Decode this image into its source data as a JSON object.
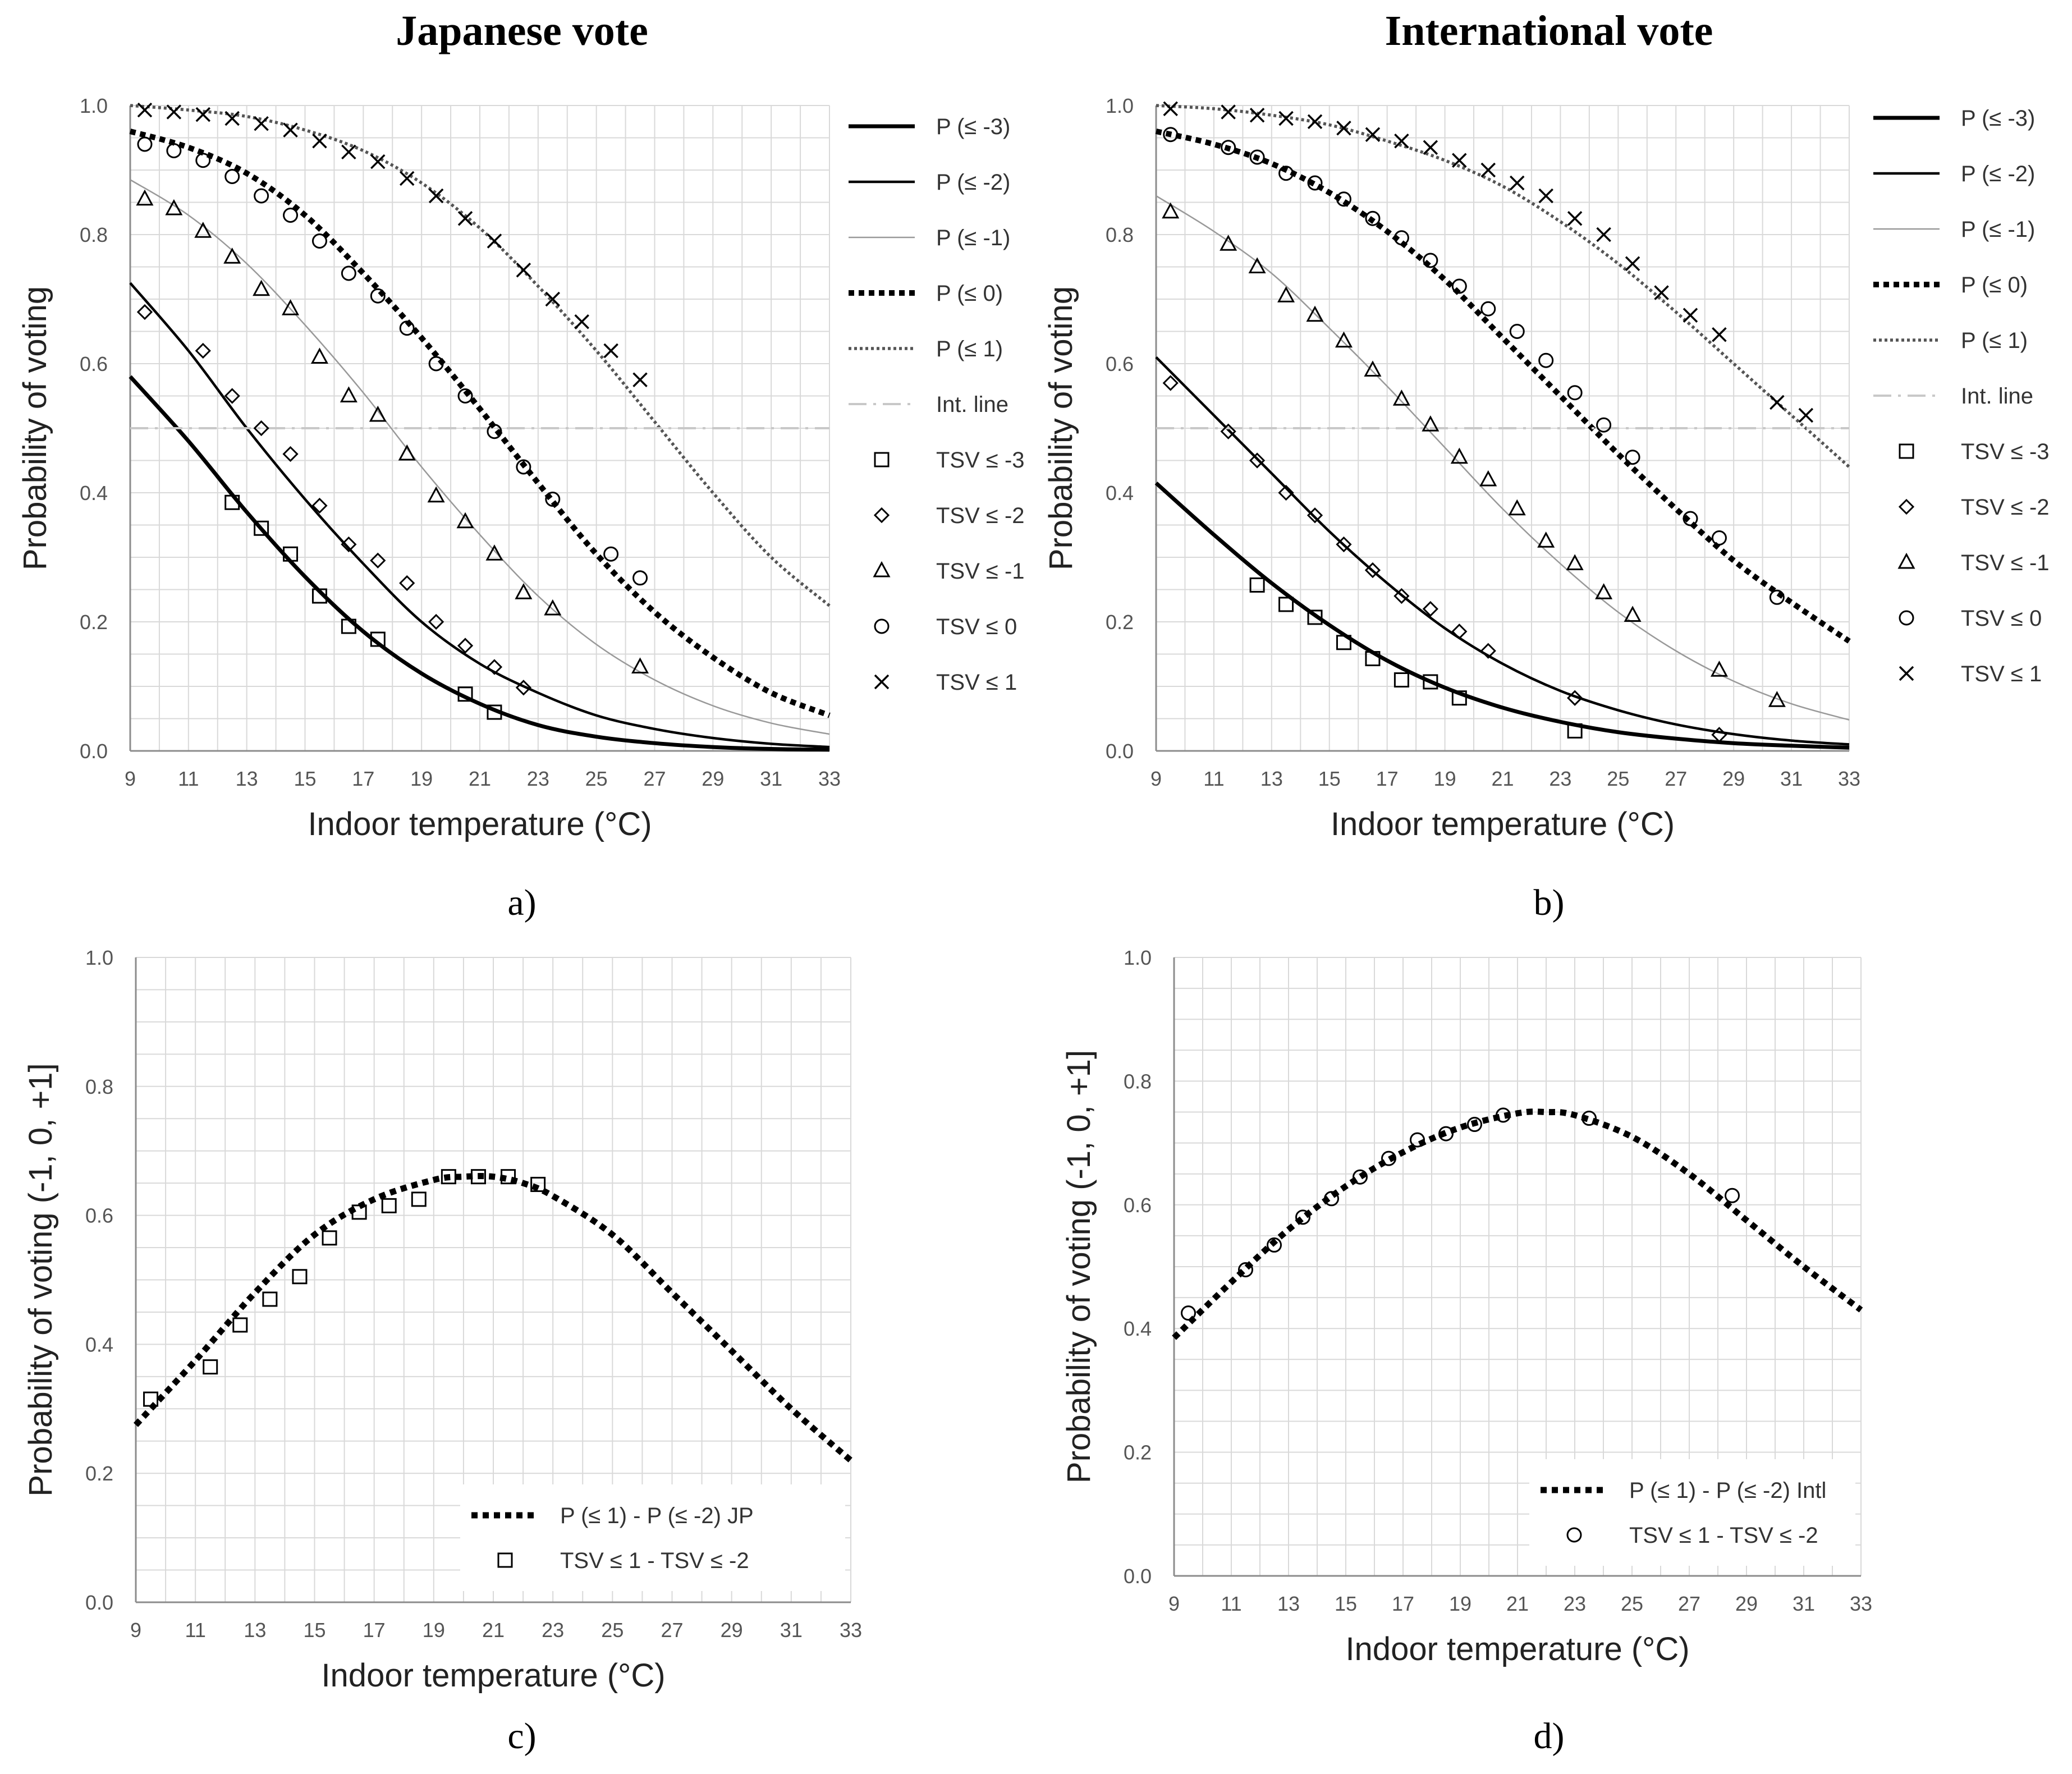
{
  "figure": {
    "titles": [
      "Japanese vote",
      "International vote"
    ],
    "sub_labels": [
      "a)",
      "b)",
      "c)",
      "d)"
    ],
    "series_styles": {
      "P (≤ -3)": {
        "color": "#000000"
      },
      "P (≤ -2)": {
        "color": "#000000"
      },
      "P (≤ -1)": {
        "color": "#999999"
      },
      "P (≤ 0)": {
        "color": "#000000",
        "dash": "dotted"
      },
      "P (≤ 1)": {
        "color": "#555555",
        "dash": "dotted"
      },
      "Int. line": {
        "color": "#c8c8c8",
        "dash": "dash-dot"
      }
    }
  },
  "chart_data": [
    {
      "id": "a",
      "type": "line",
      "title": "Japanese vote",
      "sub_label": "a)",
      "xlabel": "Indoor temperature (°C)",
      "ylabel": "Probability of voting",
      "xlim": [
        9,
        33
      ],
      "ylim": [
        0,
        1
      ],
      "xticks": [
        9,
        11,
        13,
        15,
        17,
        19,
        21,
        23,
        25,
        27,
        29,
        31,
        33
      ],
      "yticks": [
        "0.0",
        "0.2",
        "0.4",
        "0.6",
        "0.8",
        "1.0"
      ],
      "grid": true,
      "legend_position": "right",
      "series": [
        {
          "name": "P (≤ -3)",
          "kind": "line",
          "x": [
            9,
            11,
            13,
            15,
            17,
            19,
            21,
            23,
            25,
            27,
            29,
            31,
            33
          ],
          "values": [
            0.58,
            0.48,
            0.37,
            0.27,
            0.185,
            0.12,
            0.073,
            0.04,
            0.022,
            0.012,
            0.006,
            0.003,
            0.002
          ]
        },
        {
          "name": "P (≤ -2)",
          "kind": "line",
          "x": [
            9,
            11,
            13,
            15,
            17,
            19,
            21,
            23,
            25,
            27,
            29,
            31,
            33
          ],
          "values": [
            0.725,
            0.62,
            0.5,
            0.39,
            0.29,
            0.2,
            0.135,
            0.09,
            0.055,
            0.034,
            0.02,
            0.011,
            0.006
          ]
        },
        {
          "name": "P (≤ -1)",
          "kind": "line",
          "x": [
            9,
            11,
            13,
            15,
            17,
            19,
            21,
            23,
            25,
            27,
            29,
            31,
            33
          ],
          "values": [
            0.885,
            0.83,
            0.755,
            0.66,
            0.555,
            0.44,
            0.335,
            0.24,
            0.165,
            0.11,
            0.07,
            0.043,
            0.026
          ]
        },
        {
          "name": "P (≤ 0)",
          "kind": "line",
          "x": [
            9,
            11,
            13,
            15,
            17,
            19,
            21,
            23,
            25,
            27,
            29,
            31,
            33
          ],
          "values": [
            0.96,
            0.935,
            0.895,
            0.83,
            0.74,
            0.64,
            0.53,
            0.415,
            0.305,
            0.215,
            0.145,
            0.09,
            0.055
          ]
        },
        {
          "name": "P (≤ 1)",
          "kind": "line",
          "x": [
            9,
            11,
            13,
            15,
            17,
            19,
            21,
            23,
            25,
            27,
            29,
            31,
            33
          ],
          "values": [
            1.0,
            0.993,
            0.983,
            0.962,
            0.93,
            0.88,
            0.81,
            0.72,
            0.62,
            0.51,
            0.4,
            0.3,
            0.225
          ]
        },
        {
          "name": "Int. line",
          "kind": "line",
          "x": [
            9,
            33
          ],
          "values": [
            0.5,
            0.5
          ]
        },
        {
          "name": "TSV ≤ -3",
          "kind": "points",
          "marker": "square",
          "x": [
            12.5,
            13.5,
            14.5,
            15.5,
            16.5,
            17.5,
            20.5,
            21.5
          ],
          "values": [
            0.385,
            0.345,
            0.305,
            0.24,
            0.193,
            0.173,
            0.088,
            0.06
          ]
        },
        {
          "name": "TSV ≤ -2",
          "kind": "points",
          "marker": "diamond",
          "x": [
            9.5,
            11.5,
            12.5,
            13.5,
            14.5,
            15.5,
            16.5,
            17.5,
            18.5,
            19.5,
            20.5,
            21.5,
            22.5
          ],
          "values": [
            0.68,
            0.62,
            0.55,
            0.5,
            0.46,
            0.38,
            0.32,
            0.295,
            0.26,
            0.2,
            0.163,
            0.13,
            0.098
          ]
        },
        {
          "name": "TSV ≤ -1",
          "kind": "points",
          "marker": "triangle",
          "x": [
            9.5,
            10.5,
            11.5,
            12.5,
            13.5,
            14.5,
            15.5,
            16.5,
            17.5,
            18.5,
            19.5,
            20.5,
            21.5,
            22.5,
            23.5,
            26.5
          ],
          "values": [
            0.855,
            0.84,
            0.805,
            0.765,
            0.715,
            0.685,
            0.61,
            0.55,
            0.52,
            0.46,
            0.395,
            0.355,
            0.305,
            0.245,
            0.22,
            0.13
          ]
        },
        {
          "name": "TSV ≤ 0",
          "kind": "points",
          "marker": "circle",
          "x": [
            9.5,
            10.5,
            11.5,
            12.5,
            13.5,
            14.5,
            15.5,
            16.5,
            17.5,
            18.5,
            19.5,
            20.5,
            21.5,
            22.5,
            23.5,
            25.5,
            26.5
          ],
          "values": [
            0.94,
            0.93,
            0.915,
            0.89,
            0.86,
            0.83,
            0.79,
            0.74,
            0.705,
            0.655,
            0.6,
            0.55,
            0.495,
            0.44,
            0.39,
            0.305,
            0.268
          ]
        },
        {
          "name": "TSV ≤ 1",
          "kind": "points",
          "marker": "cross",
          "x": [
            9.5,
            10.5,
            11.5,
            12.5,
            13.5,
            14.5,
            15.5,
            16.5,
            17.5,
            18.5,
            19.5,
            20.5,
            21.5,
            22.5,
            23.5,
            24.5,
            25.5,
            26.5
          ],
          "values": [
            0.993,
            0.99,
            0.986,
            0.98,
            0.972,
            0.962,
            0.945,
            0.928,
            0.913,
            0.887,
            0.86,
            0.825,
            0.79,
            0.745,
            0.7,
            0.665,
            0.62,
            0.575
          ]
        }
      ]
    },
    {
      "id": "b",
      "type": "line",
      "title": "International vote",
      "sub_label": "b)",
      "xlabel": "Indoor temperature (°C)",
      "ylabel": "Probability of voting",
      "xlim": [
        9,
        33
      ],
      "ylim": [
        0,
        1
      ],
      "xticks": [
        9,
        11,
        13,
        15,
        17,
        19,
        21,
        23,
        25,
        27,
        29,
        31,
        33
      ],
      "yticks": [
        "0.0",
        "0.2",
        "0.4",
        "0.6",
        "0.8",
        "1.0"
      ],
      "grid": true,
      "legend_position": "right",
      "series": [
        {
          "name": "P (≤ -3)",
          "kind": "line",
          "x": [
            9,
            11,
            13,
            15,
            17,
            19,
            21,
            23,
            25,
            27,
            29,
            31,
            33
          ],
          "values": [
            0.415,
            0.335,
            0.26,
            0.195,
            0.14,
            0.098,
            0.067,
            0.045,
            0.029,
            0.019,
            0.012,
            0.008,
            0.005
          ]
        },
        {
          "name": "P (≤ -2)",
          "kind": "line",
          "x": [
            9,
            11,
            13,
            15,
            17,
            19,
            21,
            23,
            25,
            27,
            29,
            31,
            33
          ],
          "values": [
            0.61,
            0.52,
            0.43,
            0.34,
            0.26,
            0.19,
            0.135,
            0.093,
            0.063,
            0.041,
            0.026,
            0.016,
            0.01
          ]
        },
        {
          "name": "P (≤ -1)",
          "kind": "line",
          "x": [
            9,
            11,
            13,
            15,
            17,
            19,
            21,
            23,
            25,
            27,
            29,
            31,
            33
          ],
          "values": [
            0.86,
            0.805,
            0.74,
            0.655,
            0.565,
            0.47,
            0.375,
            0.29,
            0.215,
            0.155,
            0.108,
            0.073,
            0.048
          ]
        },
        {
          "name": "P (≤ 0)",
          "kind": "line",
          "x": [
            9,
            11,
            13,
            15,
            17,
            19,
            21,
            23,
            25,
            27,
            29,
            31,
            33
          ],
          "values": [
            0.96,
            0.94,
            0.91,
            0.865,
            0.805,
            0.73,
            0.64,
            0.55,
            0.46,
            0.375,
            0.295,
            0.23,
            0.17
          ]
        },
        {
          "name": "P (≤ 1)",
          "kind": "line",
          "x": [
            9,
            11,
            13,
            15,
            17,
            19,
            21,
            23,
            25,
            27,
            29,
            31,
            33
          ],
          "values": [
            1.0,
            0.995,
            0.985,
            0.97,
            0.945,
            0.915,
            0.875,
            0.82,
            0.755,
            0.68,
            0.6,
            0.52,
            0.44
          ]
        },
        {
          "name": "Int. line",
          "kind": "line",
          "x": [
            9,
            33
          ],
          "values": [
            0.5,
            0.5
          ]
        },
        {
          "name": "TSV ≤ -3",
          "kind": "points",
          "marker": "square",
          "x": [
            12.5,
            13.5,
            14.5,
            15.5,
            16.5,
            17.5,
            18.5,
            19.5,
            23.5
          ],
          "values": [
            0.257,
            0.227,
            0.207,
            0.168,
            0.143,
            0.11,
            0.107,
            0.082,
            0.031
          ]
        },
        {
          "name": "TSV ≤ -2",
          "kind": "points",
          "marker": "diamond",
          "x": [
            9.5,
            11.5,
            12.5,
            13.5,
            14.5,
            15.5,
            16.5,
            17.5,
            18.5,
            19.5,
            20.5,
            23.5,
            28.5
          ],
          "values": [
            0.57,
            0.495,
            0.45,
            0.4,
            0.365,
            0.32,
            0.28,
            0.24,
            0.22,
            0.185,
            0.155,
            0.082,
            0.025
          ]
        },
        {
          "name": "TSV ≤ -1",
          "kind": "points",
          "marker": "triangle",
          "x": [
            9.5,
            11.5,
            12.5,
            13.5,
            14.5,
            15.5,
            16.5,
            17.5,
            18.5,
            19.5,
            20.5,
            21.5,
            22.5,
            23.5,
            24.5,
            25.5,
            28.5,
            30.5
          ],
          "values": [
            0.835,
            0.785,
            0.75,
            0.705,
            0.675,
            0.635,
            0.59,
            0.545,
            0.505,
            0.455,
            0.42,
            0.375,
            0.325,
            0.29,
            0.245,
            0.21,
            0.125,
            0.078
          ]
        },
        {
          "name": "TSV ≤ 0",
          "kind": "points",
          "marker": "circle",
          "x": [
            9.5,
            11.5,
            12.5,
            13.5,
            14.5,
            15.5,
            16.5,
            17.5,
            18.5,
            19.5,
            20.5,
            21.5,
            22.5,
            23.5,
            24.5,
            25.5,
            27.5,
            28.5,
            30.5
          ],
          "values": [
            0.955,
            0.935,
            0.92,
            0.895,
            0.88,
            0.855,
            0.825,
            0.795,
            0.76,
            0.72,
            0.685,
            0.65,
            0.605,
            0.555,
            0.505,
            0.455,
            0.36,
            0.33,
            0.238
          ]
        },
        {
          "name": "TSV ≤ 1",
          "kind": "points",
          "marker": "cross",
          "x": [
            9.5,
            11.5,
            12.5,
            13.5,
            14.5,
            15.5,
            16.5,
            17.5,
            18.5,
            19.5,
            20.5,
            21.5,
            22.5,
            23.5,
            24.5,
            25.5,
            26.5,
            27.5,
            28.5,
            30.5,
            31.5
          ],
          "values": [
            0.995,
            0.99,
            0.985,
            0.98,
            0.975,
            0.965,
            0.955,
            0.945,
            0.935,
            0.915,
            0.9,
            0.88,
            0.86,
            0.825,
            0.8,
            0.755,
            0.71,
            0.675,
            0.645,
            0.54,
            0.52
          ]
        }
      ]
    },
    {
      "id": "c",
      "type": "line",
      "sub_label": "c)",
      "xlabel": "Indoor temperature (°C)",
      "ylabel": "Probability of voting  (-1, 0, +1]",
      "xlim": [
        9,
        33
      ],
      "ylim": [
        0,
        1
      ],
      "xticks": [
        9,
        11,
        13,
        15,
        17,
        19,
        21,
        23,
        25,
        27,
        29,
        31,
        33
      ],
      "yticks": [
        "0.0",
        "0.2",
        "0.4",
        "0.6",
        "0.8",
        "1.0"
      ],
      "grid": true,
      "legend_position": "bottom-right",
      "series": [
        {
          "name": "P (≤ 1) - P (≤ -2) JP",
          "kind": "line",
          "x": [
            9,
            11,
            13,
            15,
            17,
            19,
            20,
            21,
            22,
            23,
            25,
            27,
            29,
            31,
            33
          ],
          "values": [
            0.275,
            0.375,
            0.48,
            0.57,
            0.625,
            0.655,
            0.66,
            0.66,
            0.65,
            0.63,
            0.57,
            0.48,
            0.39,
            0.3,
            0.22
          ]
        },
        {
          "name": "TSV ≤ 1 - TSV ≤ -2",
          "kind": "points",
          "marker": "square",
          "x": [
            9.5,
            11.5,
            12.5,
            13.5,
            14.5,
            15.5,
            16.5,
            17.5,
            18.5,
            19.5,
            20.5,
            21.5,
            22.5
          ],
          "values": [
            0.315,
            0.365,
            0.43,
            0.47,
            0.505,
            0.565,
            0.605,
            0.615,
            0.625,
            0.66,
            0.66,
            0.66,
            0.648
          ]
        }
      ]
    },
    {
      "id": "d",
      "type": "line",
      "sub_label": "d)",
      "xlabel": "Indoor temperature (°C)",
      "ylabel": "Probability of voting  (-1, 0, +1]",
      "xlim": [
        9,
        33
      ],
      "ylim": [
        0,
        1
      ],
      "xticks": [
        9,
        11,
        13,
        15,
        17,
        19,
        21,
        23,
        25,
        27,
        29,
        31,
        33
      ],
      "yticks": [
        "0.0",
        "0.2",
        "0.4",
        "0.6",
        "0.8",
        "1.0"
      ],
      "grid": true,
      "legend_position": "bottom-right",
      "series": [
        {
          "name": "P (≤ 1) - P (≤ -2) Intl",
          "kind": "line",
          "x": [
            9,
            11,
            13,
            15,
            17,
            19,
            21,
            22,
            23,
            25,
            27,
            29,
            31,
            33
          ],
          "values": [
            0.385,
            0.475,
            0.56,
            0.63,
            0.685,
            0.725,
            0.748,
            0.75,
            0.745,
            0.71,
            0.65,
            0.575,
            0.5,
            0.43
          ]
        },
        {
          "name": "TSV ≤ 1 - TSV ≤ -2",
          "kind": "points",
          "marker": "circle",
          "x": [
            9.5,
            11.5,
            12.5,
            13.5,
            14.5,
            15.5,
            16.5,
            17.5,
            18.5,
            19.5,
            20.5,
            23.5,
            28.5
          ],
          "values": [
            0.425,
            0.495,
            0.535,
            0.58,
            0.61,
            0.645,
            0.675,
            0.705,
            0.715,
            0.73,
            0.745,
            0.74,
            0.615
          ]
        }
      ]
    }
  ]
}
